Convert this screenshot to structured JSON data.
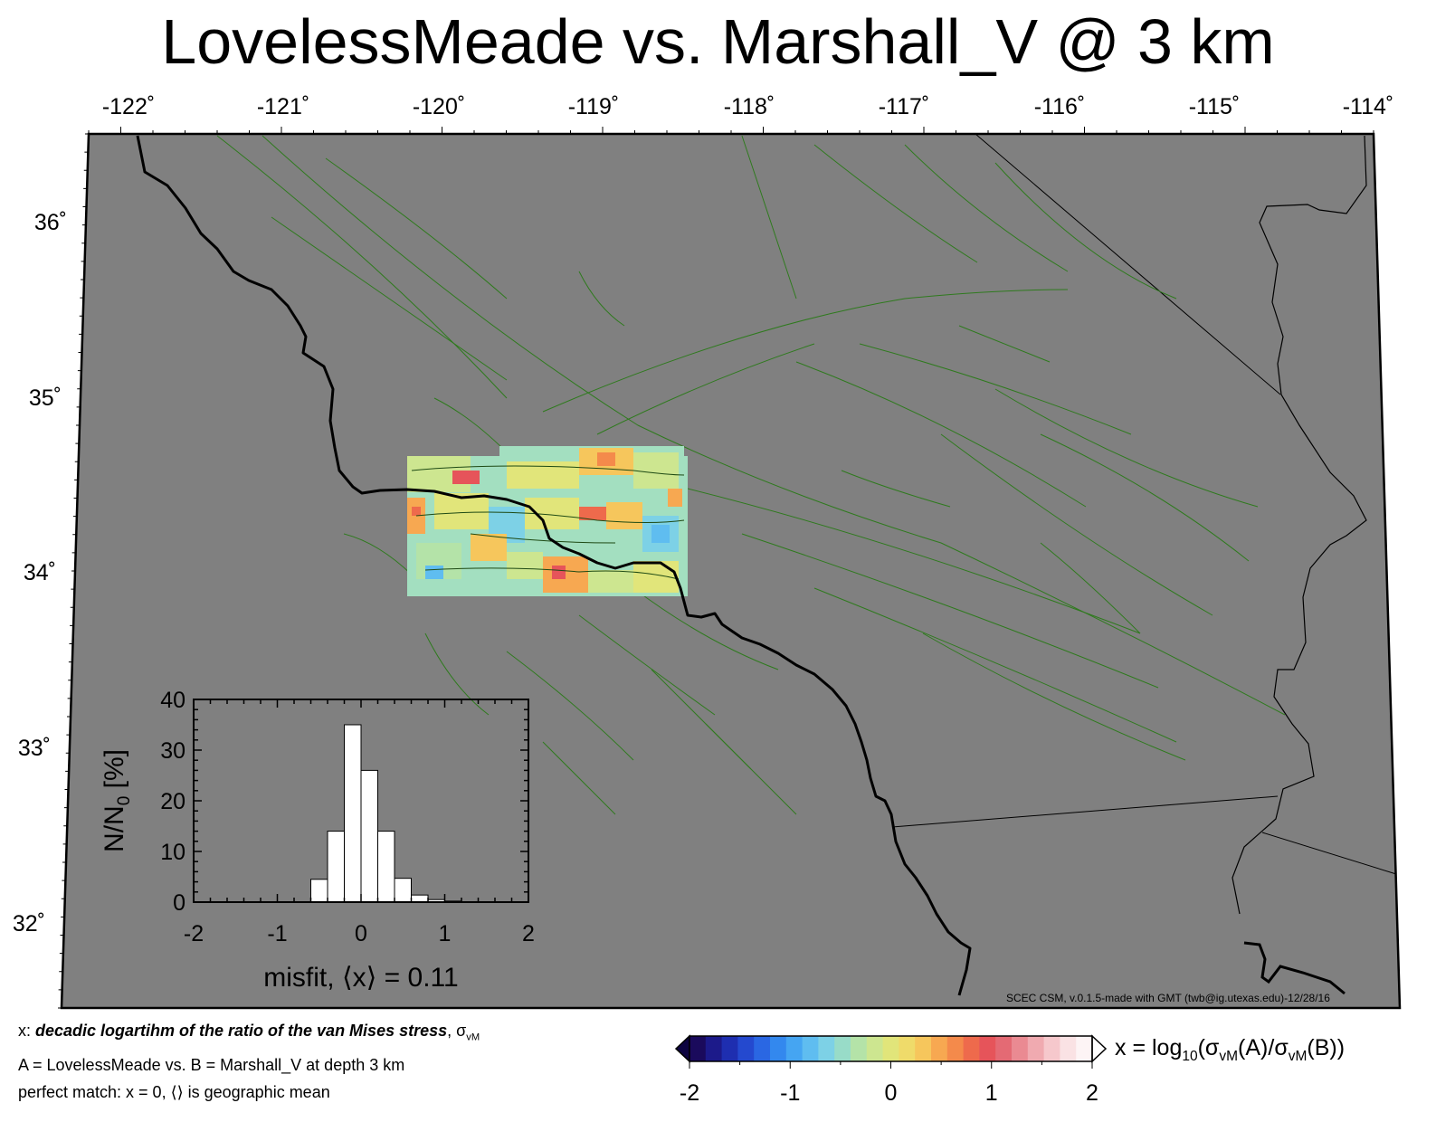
{
  "title": "LovelessMeade vs. Marshall_V @ 3 km",
  "map": {
    "lon_ticks": [
      "-122˚",
      "-121˚",
      "-120˚",
      "-119˚",
      "-118˚",
      "-117˚",
      "-116˚",
      "-115˚",
      "-114˚"
    ],
    "lat_ticks": [
      "36˚",
      "35˚",
      "34˚",
      "33˚",
      "32˚"
    ],
    "land_color": "#808080",
    "fault_color": "#2f7a1e",
    "coast_color": "#000000",
    "credit": "SCEC CSM, v.0.1.5-made with GMT (twb@ig.utexas.edu)-12/28/16"
  },
  "chart_data": {
    "type": "bar",
    "xlabel": "misfit, ⟨x⟩ = 0.11",
    "ylabel": "N/N",
    "ylabel_sub": "0",
    "ylabel_suffix": " [%]",
    "xlim": [
      -2,
      2
    ],
    "ylim": [
      0,
      40
    ],
    "x_ticks": [
      "-2",
      "-1",
      "0",
      "1",
      "2"
    ],
    "y_ticks": [
      "0",
      "10",
      "20",
      "30",
      "40"
    ],
    "bin_width": 0.2,
    "bins": [
      -0.5,
      -0.3,
      -0.1,
      0.1,
      0.3,
      0.5,
      0.7,
      0.9,
      1.1
    ],
    "values": [
      4.5,
      14,
      35,
      26,
      14,
      4.7,
      1.4,
      0.5,
      0.2
    ]
  },
  "notes": {
    "line1_prefix": "x: ",
    "line1_bold": "decadic logartihm of the ratio of the van Mises stress",
    "line1_suffix": ", σ",
    "line1_sub": "vM",
    "line2": "A = LovelessMeade vs.  B = Marshall_V at depth 3 km",
    "line3": "perfect match: x = 0, ⟨⟩ is geographic mean"
  },
  "colorbar": {
    "ticks": [
      "-2",
      "-1",
      "0",
      "1",
      "2"
    ],
    "label_prefix": "x = log",
    "label_sub": "10",
    "label_mid": "(σ",
    "label_sub2": "vM",
    "label_mid2": "(A)/σ",
    "label_sub3": "vM",
    "label_end": "(B))",
    "colors": [
      "#1a0a5c",
      "#1c1a8a",
      "#1e2eb0",
      "#2449cf",
      "#2a67e3",
      "#3388ee",
      "#45a5f2",
      "#5fbdf0",
      "#7dd1e6",
      "#98dcc8",
      "#b4e3a8",
      "#cde690",
      "#e1e57a",
      "#efdb6a",
      "#f6c65c",
      "#f7a851",
      "#f48a4b",
      "#ee6a4c",
      "#e6545a",
      "#e46a74",
      "#ea8a92",
      "#f0aab0",
      "#f6c8cc",
      "#fae2e4",
      "#fdf4f5"
    ]
  }
}
